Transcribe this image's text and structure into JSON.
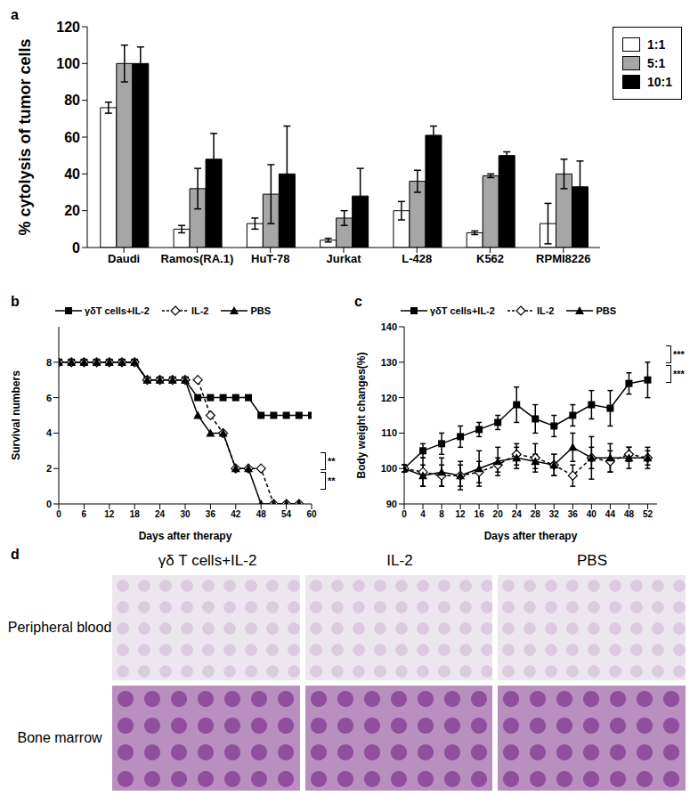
{
  "chart_data": [
    {
      "type": "bar",
      "title": "a",
      "y_label": "% cytolysis of tumor cells",
      "grid": false,
      "legend": "right",
      "categories": [
        "Daudi",
        "Ramos(RA.1)",
        "HuT-78",
        "Jurkat",
        "L-428",
        "K562",
        "RPMI8226"
      ],
      "ylim": [
        0,
        120
      ],
      "yticks": [
        0,
        20,
        40,
        60,
        80,
        100,
        120
      ],
      "series": [
        {
          "name": "1:1",
          "color": "#ffffff",
          "values": [
            76,
            10,
            13,
            4,
            20,
            8,
            13
          ],
          "errors": [
            3,
            2,
            3,
            1,
            5,
            1,
            11
          ]
        },
        {
          "name": "5:1",
          "color": "#a6a6a6",
          "values": [
            100,
            32,
            29,
            16,
            36,
            39,
            40
          ],
          "errors": [
            10,
            11,
            16,
            4,
            6,
            1,
            8
          ]
        },
        {
          "name": "10:1",
          "color": "#000000",
          "values": [
            100,
            48,
            40,
            28,
            61,
            50,
            33
          ],
          "errors": [
            9,
            14,
            26,
            15,
            5,
            2,
            14
          ]
        }
      ]
    },
    {
      "type": "line",
      "title": "b",
      "x_label": "Days  after therapy",
      "y_label": "Survival numbers",
      "grid": false,
      "legend": "top",
      "x": [
        0,
        3,
        6,
        9,
        12,
        15,
        18,
        21,
        24,
        27,
        30,
        33,
        36,
        39,
        42,
        45,
        48,
        51,
        54,
        57,
        60
      ],
      "xlim": [
        0,
        60
      ],
      "xticks": [
        0,
        6,
        12,
        18,
        24,
        30,
        36,
        42,
        48,
        54,
        60
      ],
      "ylim": [
        0,
        10
      ],
      "yticks": [
        0,
        2,
        4,
        6,
        8
      ],
      "annotations": [
        "**",
        "**"
      ],
      "series": [
        {
          "name": "γδT cells+IL-2",
          "color": "#000000",
          "marker": "square",
          "line_style": "solid",
          "values": [
            8,
            8,
            8,
            8,
            8,
            8,
            8,
            7,
            7,
            7,
            7,
            6,
            6,
            6,
            6,
            6,
            5,
            5,
            5,
            5,
            5
          ]
        },
        {
          "name": "IL-2",
          "color": "#000000",
          "marker": "diamond-open",
          "line_style": "dashed",
          "values": [
            8,
            8,
            8,
            8,
            8,
            8,
            8,
            7,
            7,
            7,
            7,
            7,
            5,
            4,
            2,
            2,
            2,
            0,
            0,
            0,
            null
          ]
        },
        {
          "name": "PBS",
          "color": "#000000",
          "marker": "triangle",
          "line_style": "solid",
          "values": [
            8,
            8,
            8,
            8,
            8,
            8,
            8,
            7,
            7,
            7,
            7,
            5,
            4,
            4,
            2,
            2,
            0,
            0,
            0,
            0,
            null
          ]
        }
      ]
    },
    {
      "type": "line",
      "title": "c",
      "x_label": "Days after therapy",
      "y_label": "Body weight changes(%)",
      "grid": false,
      "legend": "top",
      "x": [
        0,
        4,
        8,
        12,
        16,
        20,
        24,
        28,
        32,
        36,
        40,
        44,
        48,
        52
      ],
      "xlim": [
        0,
        54
      ],
      "xticks": [
        0,
        4,
        8,
        12,
        16,
        20,
        24,
        28,
        32,
        36,
        40,
        44,
        48,
        52
      ],
      "ylim": [
        90,
        140
      ],
      "yticks": [
        90,
        100,
        110,
        120,
        130,
        140
      ],
      "annotations": [
        "***",
        "***"
      ],
      "series": [
        {
          "name": "γδT cells+IL-2",
          "color": "#000000",
          "marker": "square",
          "line_style": "solid",
          "values": [
            100,
            105,
            107,
            109,
            111,
            113,
            118,
            114,
            112,
            115,
            118,
            117,
            124,
            125
          ],
          "errors": [
            1,
            2,
            3,
            3,
            2,
            2,
            5,
            4,
            3,
            3,
            4,
            5,
            3,
            5
          ]
        },
        {
          "name": "IL-2",
          "color": "#000000",
          "marker": "diamond-open",
          "line_style": "dashed",
          "values": [
            100,
            99,
            98,
            98,
            99,
            101,
            104,
            103,
            101,
            98,
            103,
            102,
            104,
            103
          ],
          "errors": [
            1,
            4,
            3,
            4,
            3,
            2,
            3,
            4,
            3,
            3,
            3,
            3,
            2,
            2
          ]
        },
        {
          "name": "PBS",
          "color": "#000000",
          "marker": "triangle",
          "line_style": "solid",
          "values": [
            100,
            98,
            99,
            98,
            100,
            102,
            103,
            102,
            101,
            106,
            103,
            103,
            103,
            103
          ],
          "errors": [
            1,
            3,
            4,
            3,
            5,
            4,
            3,
            2,
            3,
            4,
            6,
            4,
            3,
            3
          ]
        }
      ]
    },
    {
      "type": "image_grid",
      "title": "d",
      "columns": [
        "γδ T cells+IL-2",
        "IL-2",
        "PBS"
      ],
      "rows": [
        "Peripheral blood",
        "Bone marrow"
      ]
    }
  ]
}
